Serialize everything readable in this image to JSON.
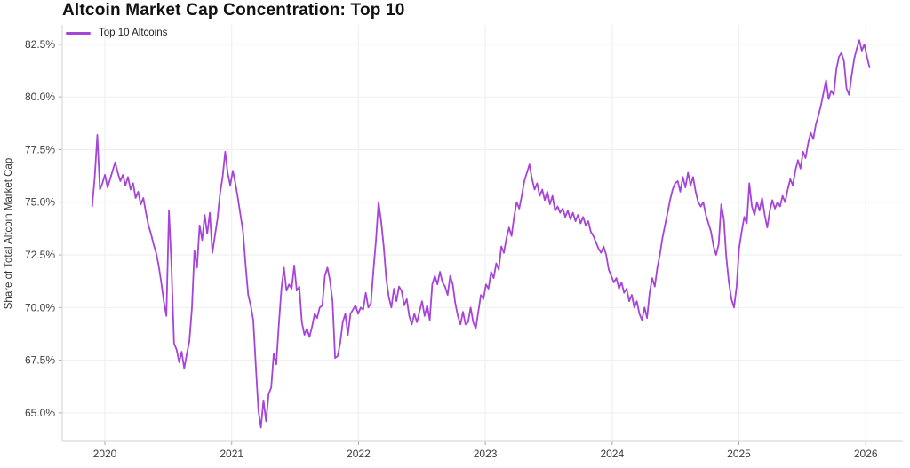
{
  "header": {
    "title": "Altcoin Market Cap Concentration: Top 10"
  },
  "legend": {
    "label": "Top 10 Altcoins"
  },
  "colors": {
    "line": "#a644d9",
    "grid": "#f0f0f4",
    "spine": "#d9d9de",
    "tick": "#a8a8ad",
    "tick_text": "#3c3c3c",
    "title_text": "#111111"
  },
  "chart_data": {
    "type": "line",
    "title": "Altcoin Market Cap Concentration: Top 10",
    "xlabel": "",
    "ylabel": "Share of Total Altcoin Market Cap",
    "legend_position": "top-left",
    "grid": "faint horizontal and vertical",
    "x_ticks": [
      "2020",
      "2021",
      "2022",
      "2023",
      "2024",
      "2025",
      "2026"
    ],
    "y_ticks": [
      "65.0%",
      "67.5%",
      "70.0%",
      "72.5%",
      "75.0%",
      "77.5%",
      "80.0%",
      "82.5%"
    ],
    "y_tick_values": [
      65.0,
      67.5,
      70.0,
      72.5,
      75.0,
      77.5,
      80.0,
      82.5
    ],
    "ylim": [
      63.6,
      83.3
    ],
    "xlim": [
      2019.79,
      2026.28
    ],
    "series": [
      {
        "name": "Top 10 Altcoins",
        "unit": "% of total altcoin market cap",
        "x_start": 2019.9,
        "x_end": 2026.03,
        "values": [
          74.8,
          76.2,
          78.2,
          75.6,
          75.9,
          76.3,
          75.7,
          76.1,
          76.5,
          76.9,
          76.4,
          76.0,
          76.3,
          75.8,
          76.2,
          75.6,
          75.9,
          75.2,
          75.5,
          74.9,
          75.2,
          74.5,
          73.9,
          73.5,
          73.0,
          72.6,
          72.0,
          71.2,
          70.3,
          69.6,
          74.6,
          72.0,
          68.3,
          68.0,
          67.4,
          67.9,
          67.1,
          67.8,
          68.4,
          70.0,
          72.7,
          71.9,
          73.9,
          73.2,
          74.4,
          73.5,
          74.5,
          72.6,
          73.4,
          74.2,
          75.4,
          76.2,
          77.4,
          76.4,
          75.8,
          76.5,
          75.9,
          75.2,
          74.4,
          73.6,
          72.0,
          70.6,
          70.1,
          69.4,
          67.2,
          65.1,
          64.3,
          65.6,
          64.6,
          65.9,
          66.2,
          67.8,
          67.3,
          69.2,
          70.9,
          71.9,
          70.8,
          71.1,
          70.9,
          72.0,
          70.8,
          71.0,
          69.3,
          68.7,
          69.0,
          68.6,
          69.1,
          69.7,
          69.5,
          70.0,
          70.1,
          71.5,
          71.9,
          71.3,
          70.3,
          67.6,
          67.7,
          68.3,
          69.3,
          69.7,
          68.7,
          69.7,
          69.9,
          70.1,
          69.7,
          70.0,
          69.9,
          70.7,
          70.0,
          70.2,
          71.8,
          73.2,
          75.0,
          74.1,
          72.9,
          71.4,
          70.5,
          70.0,
          70.9,
          70.3,
          71.0,
          70.8,
          70.1,
          70.4,
          69.6,
          69.2,
          69.7,
          69.3,
          69.8,
          70.3,
          69.6,
          70.1,
          69.4,
          71.1,
          71.5,
          71.1,
          71.7,
          71.2,
          71.0,
          70.6,
          71.5,
          71.1,
          70.2,
          69.6,
          69.2,
          69.8,
          69.2,
          69.3,
          70.0,
          69.3,
          69.0,
          69.8,
          70.6,
          70.4,
          71.1,
          70.9,
          71.7,
          71.4,
          72.1,
          71.8,
          72.9,
          72.6,
          73.3,
          73.8,
          73.4,
          74.3,
          75.0,
          74.7,
          75.3,
          76.0,
          76.4,
          76.8,
          76.1,
          75.6,
          75.9,
          75.3,
          75.6,
          75.1,
          75.5,
          74.9,
          75.3,
          74.6,
          74.8,
          74.5,
          74.7,
          74.3,
          74.6,
          74.2,
          74.5,
          74.1,
          74.4,
          74.0,
          74.3,
          73.9,
          74.1,
          73.6,
          73.4,
          73.1,
          72.8,
          72.6,
          72.9,
          72.5,
          71.8,
          71.5,
          71.2,
          71.4,
          70.9,
          71.2,
          70.7,
          70.9,
          70.3,
          70.6,
          70.0,
          70.3,
          69.7,
          69.4,
          70.0,
          69.5,
          70.7,
          71.4,
          71.0,
          71.9,
          72.5,
          73.3,
          73.9,
          74.5,
          75.1,
          75.6,
          75.9,
          76.0,
          75.5,
          76.2,
          75.7,
          76.4,
          75.8,
          76.2,
          75.5,
          75.0,
          74.8,
          75.0,
          74.4,
          74.0,
          73.6,
          72.9,
          72.5,
          73.0,
          74.9,
          74.2,
          72.4,
          71.2,
          70.4,
          70.0,
          71.0,
          72.8,
          73.6,
          74.3,
          74.0,
          75.9,
          74.8,
          74.4,
          75.0,
          74.6,
          75.2,
          74.4,
          73.8,
          74.6,
          75.1,
          74.7,
          75.0,
          74.8,
          75.3,
          75.0,
          75.6,
          76.1,
          75.8,
          76.5,
          77.0,
          76.6,
          77.4,
          77.1,
          77.8,
          78.3,
          78.0,
          78.7,
          79.1,
          79.6,
          80.2,
          80.8,
          79.9,
          80.3,
          80.1,
          81.3,
          81.9,
          82.1,
          81.7,
          80.4,
          80.1,
          81.0,
          81.8,
          82.3,
          82.7,
          82.2,
          82.5,
          81.9,
          81.4
        ]
      }
    ]
  }
}
